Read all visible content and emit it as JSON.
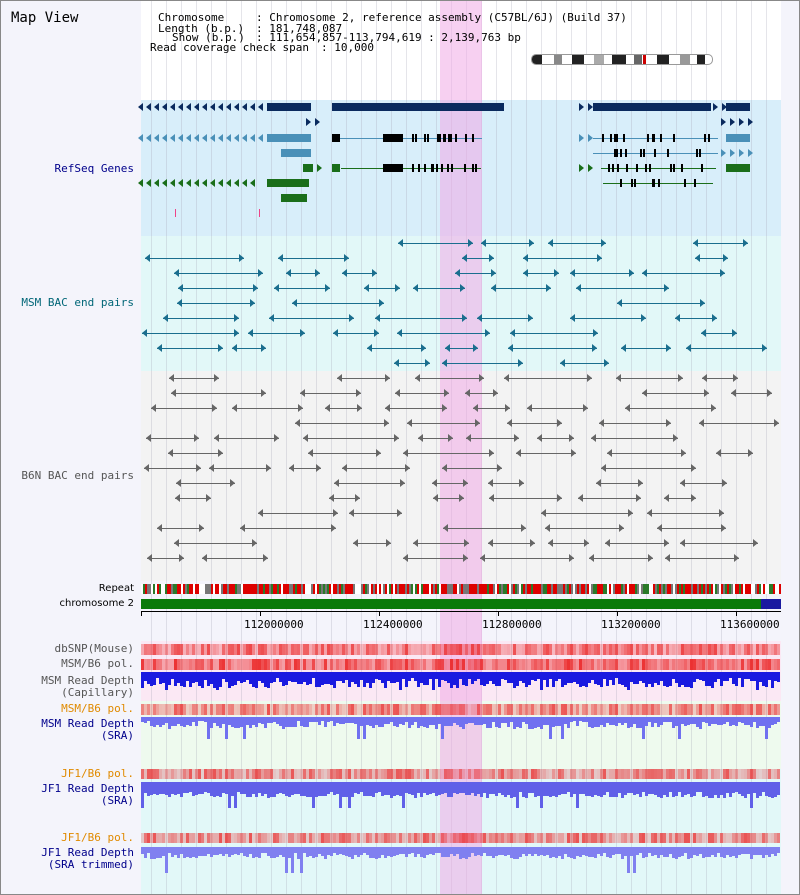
{
  "view_title": "Map View",
  "info": {
    "chromosome_label": "Chromosome",
    "chromosome_value": ": Chromosome 2, reference assembly (C57BL/6J) (Build 37)",
    "length_label": "Length (b.p.)",
    "length_value": ": 181,748,087",
    "show_label": "Show (b.p.)",
    "show_value": ": 111,654,857-113,794,619 : 2,139,763 bp",
    "read_coverage_label": "Read coverage check span",
    "read_coverage_value": ": 10,000"
  },
  "tracks": {
    "refseq": "RefSeq Genes",
    "msm_bac": "MSM BAC end pairs",
    "b6n_bac": "B6N BAC end pairs",
    "repeat": "Repeat",
    "chromosome": "chromosome 2",
    "dbsnp": "dbSNP(Mouse)",
    "msm_b6_pol_1": "MSM/B6 pol.",
    "msm_read_depth_cap_1": "MSM Read Depth",
    "msm_read_depth_cap_2": "(Capillary)",
    "msm_b6_pol_2": "MSM/B6 pol.",
    "msm_read_depth_sra_1": "MSM Read Depth",
    "msm_read_depth_sra_2": "(SRA)",
    "jf1_b6_pol_1": "JF1/B6 pol.",
    "jf1_read_depth_sra_1": "JF1 Read Depth",
    "jf1_read_depth_sra_2": "(SRA)",
    "jf1_b6_pol_2": "JF1/B6 pol.",
    "jf1_read_depth_trim_1": "JF1 Read Depth",
    "jf1_read_depth_trim_2": "(SRA trimmed)"
  },
  "axis_ticks": [
    "112000000",
    "112400000",
    "112800000",
    "113200000",
    "113600000"
  ],
  "colors": {
    "refseq_navy": "#0a2a5e",
    "refseq_teal": "#4a90b8",
    "refseq_green": "#1a6e1a",
    "msm_bac": "#1a6e8e",
    "b6n_bac": "#666666",
    "label_blue": "#00008b",
    "label_teal": "#006677",
    "label_orange": "#e08a00",
    "highlight": "#f0aae6"
  }
}
